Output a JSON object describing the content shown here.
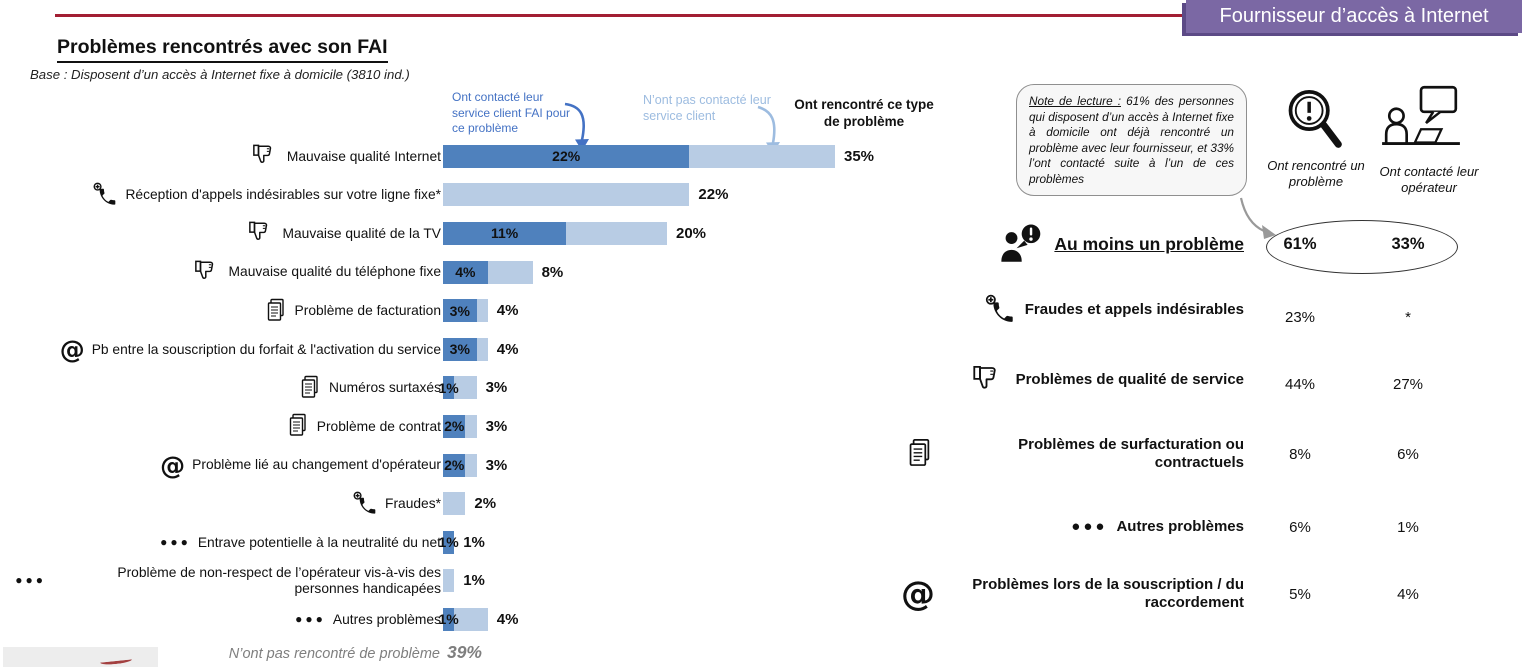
{
  "banner": {
    "label": "Fournisseur d’accès à Internet",
    "color": "#7b68a4"
  },
  "header": {
    "title": "Problèmes rencontrés avec son FAI",
    "base": "Base : Disposent d’un accès à Internet fixe à domicile (3810 ind.)"
  },
  "legend": {
    "contacted": "Ont contacté leur service client FAI pour ce problème",
    "not_contacted": "N’ont pas contacté leur service client",
    "encountered": "Ont rencontré ce type de problème"
  },
  "chart_data": {
    "type": "bar",
    "orientation": "horizontal",
    "unit": "percent",
    "axis_max": 35,
    "series": [
      {
        "name": "Ont contacté leur service client FAI pour ce problème",
        "color": "#4f81bd"
      },
      {
        "name": "N’ont pas contacté leur service client",
        "color": "#b8cce4"
      }
    ],
    "rows": [
      {
        "icon": "thumbs-down-icon",
        "label": "Mauvaise qualité Internet",
        "contacted": 22,
        "total": 35
      },
      {
        "icon": "phone-plus-icon",
        "label": "Réception d'appels indésirables sur votre ligne fixe*",
        "contacted": 0,
        "total": 22
      },
      {
        "icon": "thumbs-down-icon",
        "label": "Mauvaise qualité de la TV",
        "contacted": 11,
        "total": 20
      },
      {
        "icon": "thumbs-down-icon",
        "label": "Mauvaise qualité du téléphone fixe",
        "contacted": 4,
        "total": 8
      },
      {
        "icon": "document-icon",
        "label": "Problème de facturation",
        "contacted": 3,
        "total": 4
      },
      {
        "icon": "at-sign-icon",
        "label": "Pb entre la souscription du forfait & l'activation du service",
        "contacted": 3,
        "total": 4
      },
      {
        "icon": "document-icon",
        "label": "Numéros surtaxés",
        "contacted": 1,
        "total": 3
      },
      {
        "icon": "document-icon",
        "label": "Problème de contrat",
        "contacted": 2,
        "total": 3
      },
      {
        "icon": "at-sign-icon",
        "label": "Problème lié au changement d'opérateur",
        "contacted": 2,
        "total": 3
      },
      {
        "icon": "phone-plus-icon",
        "label": "Fraudes*",
        "contacted": 0,
        "total": 2
      },
      {
        "icon": "dots-icon",
        "label": "Entrave potentielle à la neutralité du net",
        "contacted": 1,
        "total": 1
      },
      {
        "icon": "dots-icon",
        "label": "Problème de non-respect de l’opérateur vis-à-vis des personnes handicapées",
        "contacted": 0,
        "total": 1
      },
      {
        "icon": "dots-icon",
        "label": "Autres problèmes",
        "contacted": 1,
        "total": 4
      }
    ],
    "no_problem": {
      "label": "N’ont pas rencontré de problème",
      "value": "39%"
    }
  },
  "summary": {
    "note": {
      "title": "Note de lecture :",
      "body": " 61% des personnes qui disposent d’un accès à Internet fixe à domicile ont déjà rencontré un problème avec leur fournisseur, et 33% l’ont contacté suite à l’un de ces problèmes"
    },
    "col_headers": [
      {
        "icon": "magnifier-alert-icon",
        "label": "Ont rencontré un problème"
      },
      {
        "icon": "support-agent-icon",
        "label": "Ont contacté leur opérateur"
      }
    ],
    "rows": [
      {
        "icon": "person-alert-icon",
        "label": "Au moins un problème",
        "encountered": "61%",
        "contacted": "33%",
        "highlight": true
      },
      {
        "icon": "phone-plus-icon",
        "label": "Fraudes et appels indésirables",
        "encountered": "23%",
        "contacted": "*"
      },
      {
        "icon": "thumbs-down-icon",
        "label": "Problèmes de qualité de service",
        "encountered": "44%",
        "contacted": "27%"
      },
      {
        "icon": "document-icon",
        "label": "Problèmes de surfacturation ou contractuels",
        "encountered": "8%",
        "contacted": "6%"
      },
      {
        "icon": "dots-icon",
        "label": "Autres problèmes",
        "encountered": "6%",
        "contacted": "1%"
      },
      {
        "icon": "at-sign-icon",
        "label": "Problèmes lors de la souscription / du raccordement",
        "encountered": "5%",
        "contacted": "4%"
      }
    ]
  }
}
